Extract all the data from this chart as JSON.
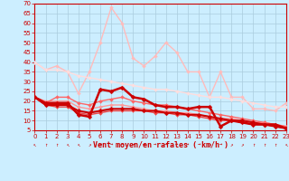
{
  "title": "",
  "xlabel": "Vent moyen/en rafales ( km/h )",
  "bg_color": "#cceeff",
  "grid_color": "#aaccdd",
  "ylim": [
    5,
    70
  ],
  "xlim": [
    0,
    23
  ],
  "yticks": [
    5,
    10,
    15,
    20,
    25,
    30,
    35,
    40,
    45,
    50,
    55,
    60,
    65,
    70
  ],
  "xticks": [
    0,
    1,
    2,
    3,
    4,
    5,
    6,
    7,
    8,
    9,
    10,
    11,
    12,
    13,
    14,
    15,
    16,
    17,
    18,
    19,
    20,
    21,
    22,
    23
  ],
  "tick_color": "#cc0000",
  "tick_fontsize": 5,
  "xlabel_fontsize": 6,
  "spine_color": "#cc0000",
  "wind_dirs": [
    "↖",
    "↑",
    "↑",
    "↖",
    "↖",
    "↗",
    "→",
    "→",
    "→",
    "→",
    "→",
    "→",
    "→",
    "→",
    "→",
    "→",
    "↗",
    "→",
    "↗",
    "↗",
    "↑",
    "↑",
    "↑",
    "↖"
  ],
  "series": [
    {
      "x": [
        0,
        1,
        2,
        3,
        4,
        5,
        6,
        7,
        8,
        9,
        10,
        11,
        12,
        13,
        14,
        15,
        16,
        17,
        18,
        19,
        20,
        21,
        22,
        23
      ],
      "y": [
        40,
        36,
        38,
        35,
        24,
        35,
        50,
        68,
        60,
        42,
        38,
        43,
        50,
        45,
        35,
        35,
        22,
        35,
        22,
        22,
        16,
        16,
        15,
        19
      ],
      "color": "#ffbbbb",
      "lw": 1.0,
      "marker": "D",
      "ms": 2.0
    },
    {
      "x": [
        0,
        1,
        2,
        3,
        4,
        5,
        6,
        7,
        8,
        9,
        10,
        11,
        12,
        13,
        14,
        15,
        16,
        17,
        18,
        19,
        20,
        21,
        22,
        23
      ],
      "y": [
        40,
        36,
        36,
        35,
        33,
        32,
        31,
        30,
        29,
        28,
        27,
        26,
        26,
        25,
        24,
        23,
        22,
        22,
        21,
        20,
        19,
        18,
        17,
        17
      ],
      "color": "#ffdddd",
      "lw": 1.0,
      "marker": "D",
      "ms": 2.0
    },
    {
      "x": [
        0,
        1,
        2,
        3,
        4,
        5,
        6,
        7,
        8,
        9,
        10,
        11,
        12,
        13,
        14,
        15,
        16,
        17,
        18,
        19,
        20,
        21,
        22,
        23
      ],
      "y": [
        22,
        20,
        20,
        20,
        17,
        16,
        17,
        18,
        18,
        17,
        16,
        15,
        15,
        14,
        14,
        13,
        12,
        11,
        11,
        10,
        9,
        9,
        8,
        7
      ],
      "color": "#ff9999",
      "lw": 1.0,
      "marker": "D",
      "ms": 2.0
    },
    {
      "x": [
        0,
        1,
        2,
        3,
        4,
        5,
        6,
        7,
        8,
        9,
        10,
        11,
        12,
        13,
        14,
        15,
        16,
        17,
        18,
        19,
        20,
        21,
        22,
        23
      ],
      "y": [
        22,
        19,
        22,
        22,
        19,
        18,
        20,
        21,
        22,
        20,
        19,
        18,
        18,
        17,
        16,
        15,
        14,
        13,
        12,
        11,
        10,
        9,
        8,
        7
      ],
      "color": "#ff6666",
      "lw": 1.0,
      "marker": "D",
      "ms": 2.0
    },
    {
      "x": [
        0,
        1,
        2,
        3,
        4,
        5,
        6,
        7,
        8,
        9,
        10,
        11,
        12,
        13,
        14,
        15,
        16,
        17,
        18,
        19,
        20,
        21,
        22,
        23
      ],
      "y": [
        22,
        18,
        17,
        17,
        14,
        13,
        14,
        15,
        15,
        15,
        15,
        14,
        14,
        13,
        13,
        12,
        11,
        10,
        10,
        9,
        8,
        8,
        7,
        6
      ],
      "color": "#ee4444",
      "lw": 1.0,
      "marker": "D",
      "ms": 2.0
    },
    {
      "x": [
        0,
        1,
        2,
        3,
        4,
        5,
        6,
        7,
        8,
        9,
        10,
        11,
        12,
        13,
        14,
        15,
        16,
        17,
        18,
        19,
        20,
        21,
        22,
        23
      ],
      "y": [
        22,
        18,
        18,
        18,
        15,
        14,
        15,
        16,
        16,
        16,
        15,
        15,
        14,
        14,
        13,
        13,
        12,
        11,
        10,
        10,
        9,
        8,
        7,
        6
      ],
      "color": "#cc0000",
      "lw": 1.5,
      "marker": "D",
      "ms": 2.5
    },
    {
      "x": [
        0,
        1,
        2,
        3,
        4,
        5,
        6,
        7,
        8,
        9,
        10,
        11,
        12,
        13,
        14,
        15,
        16,
        17,
        18,
        19,
        20,
        21,
        22,
        23
      ],
      "y": [
        22,
        19,
        19,
        19,
        13,
        12,
        26,
        25,
        27,
        22,
        21,
        18,
        17,
        17,
        16,
        17,
        17,
        7,
        10,
        9,
        8,
        8,
        8,
        6
      ],
      "color": "#cc0000",
      "lw": 1.8,
      "marker": "D",
      "ms": 2.5
    }
  ]
}
